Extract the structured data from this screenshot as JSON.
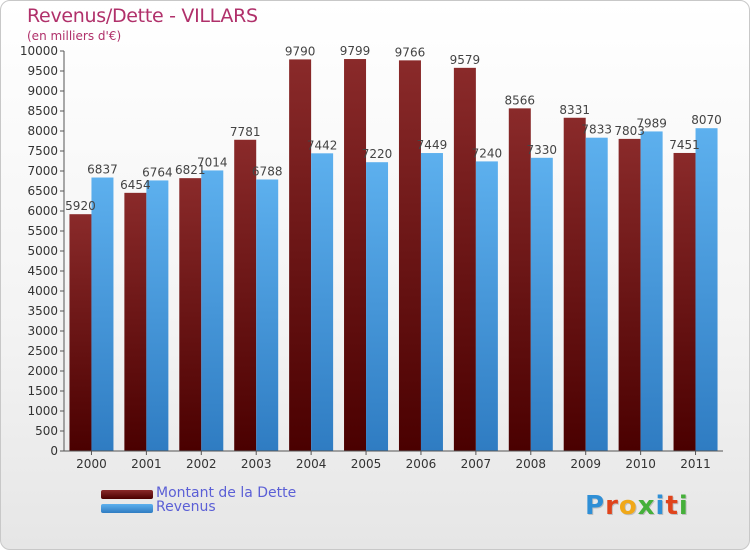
{
  "header": {
    "title": "Revenus/Dette - VILLARS",
    "subtitle": "(en milliers d'€)"
  },
  "legend": {
    "items": [
      {
        "label": "Montant de la Dette",
        "color": "#7a1414"
      },
      {
        "label": "Revenus",
        "color": "#4aa3e6"
      }
    ]
  },
  "logo": {
    "letters": [
      {
        "ch": "P",
        "color": "#2f8fd6"
      },
      {
        "ch": "r",
        "color": "#e0441c"
      },
      {
        "ch": "o",
        "color": "#f0a818"
      },
      {
        "ch": "x",
        "color": "#45b03a"
      },
      {
        "ch": "i",
        "color": "#2f8fd6"
      },
      {
        "ch": "t",
        "color": "#e0441c"
      },
      {
        "ch": "i",
        "color": "#45b03a"
      }
    ]
  },
  "chart_data": {
    "type": "bar",
    "title": "Revenus/Dette - VILLARS",
    "subtitle": "(en milliers d'€)",
    "categories": [
      "2000",
      "2001",
      "2002",
      "2003",
      "2004",
      "2005",
      "2006",
      "2007",
      "2008",
      "2009",
      "2010",
      "2011"
    ],
    "series": [
      {
        "name": "Montant de la Dette",
        "color": "#7a1414",
        "values": [
          5920,
          6454,
          6821,
          7781,
          9790,
          9799,
          9766,
          9579,
          8566,
          8331,
          7803,
          7451
        ],
        "labels": [
          "5920",
          "6454",
          "6821",
          "7781",
          "9790",
          "9799",
          "9766",
          "9579",
          "8566",
          "8331",
          "7803",
          "7451"
        ]
      },
      {
        "name": "Revenus",
        "color": "#4aa3e6",
        "values": [
          6837,
          6764,
          7014,
          6788,
          7442,
          7220,
          7449,
          7240,
          7330,
          7833,
          7989,
          8070
        ],
        "labels": [
          "6837",
          "6764",
          "7014",
          "6788",
          "7442",
          "7220",
          "7449",
          "7240",
          "7330",
          "7833",
          "7989",
          "8070"
        ]
      }
    ],
    "ylim": [
      0,
      10000
    ],
    "ytick_step": 500,
    "yticks": [
      "0",
      "500",
      "1000",
      "1500",
      "2000",
      "2500",
      "3000",
      "3500",
      "4000",
      "4500",
      "5000",
      "5500",
      "6000",
      "6500",
      "7000",
      "7500",
      "8000",
      "8500",
      "9000",
      "9500",
      "10000"
    ],
    "grid": false,
    "legend_position": "bottom-left"
  }
}
